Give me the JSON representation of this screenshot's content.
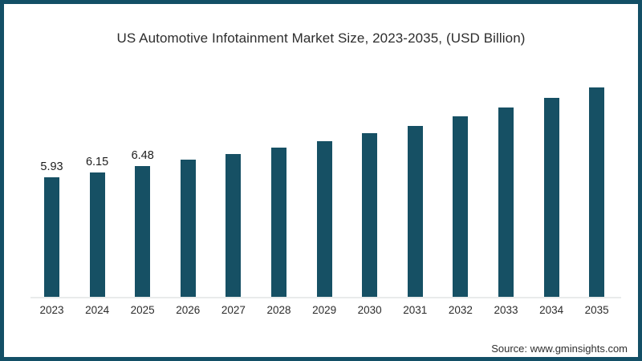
{
  "frame": {
    "border_color": "#134f66",
    "background_color": "#ffffff"
  },
  "title": "US Automotive Infotainment Market Size, 2023-2035, (USD Billion)",
  "source_note": "Source: www.gminsights.com",
  "chart_data": {
    "type": "bar",
    "title": "US Automotive Infotainment Market Size, 2023-2035, (USD Billion)",
    "xlabel": "",
    "ylabel": "",
    "unit": "USD Billion",
    "categories": [
      "2023",
      "2024",
      "2025",
      "2026",
      "2027",
      "2028",
      "2029",
      "2030",
      "2031",
      "2032",
      "2033",
      "2034",
      "2035"
    ],
    "values": [
      5.93,
      6.15,
      6.48,
      6.8,
      7.07,
      7.39,
      7.71,
      8.1,
      8.46,
      8.93,
      9.37,
      9.84,
      10.35
    ],
    "data_labels": [
      "5.93",
      "6.15",
      "6.48",
      "",
      "",
      "",
      "",
      "",
      "",
      "",
      "",
      "",
      ""
    ],
    "bar_color": "#165064",
    "axis_line_color": "#e9ebeb",
    "ylim": [
      0,
      10.7
    ],
    "grid": false,
    "legend": "none",
    "y_axis_shown": false
  }
}
